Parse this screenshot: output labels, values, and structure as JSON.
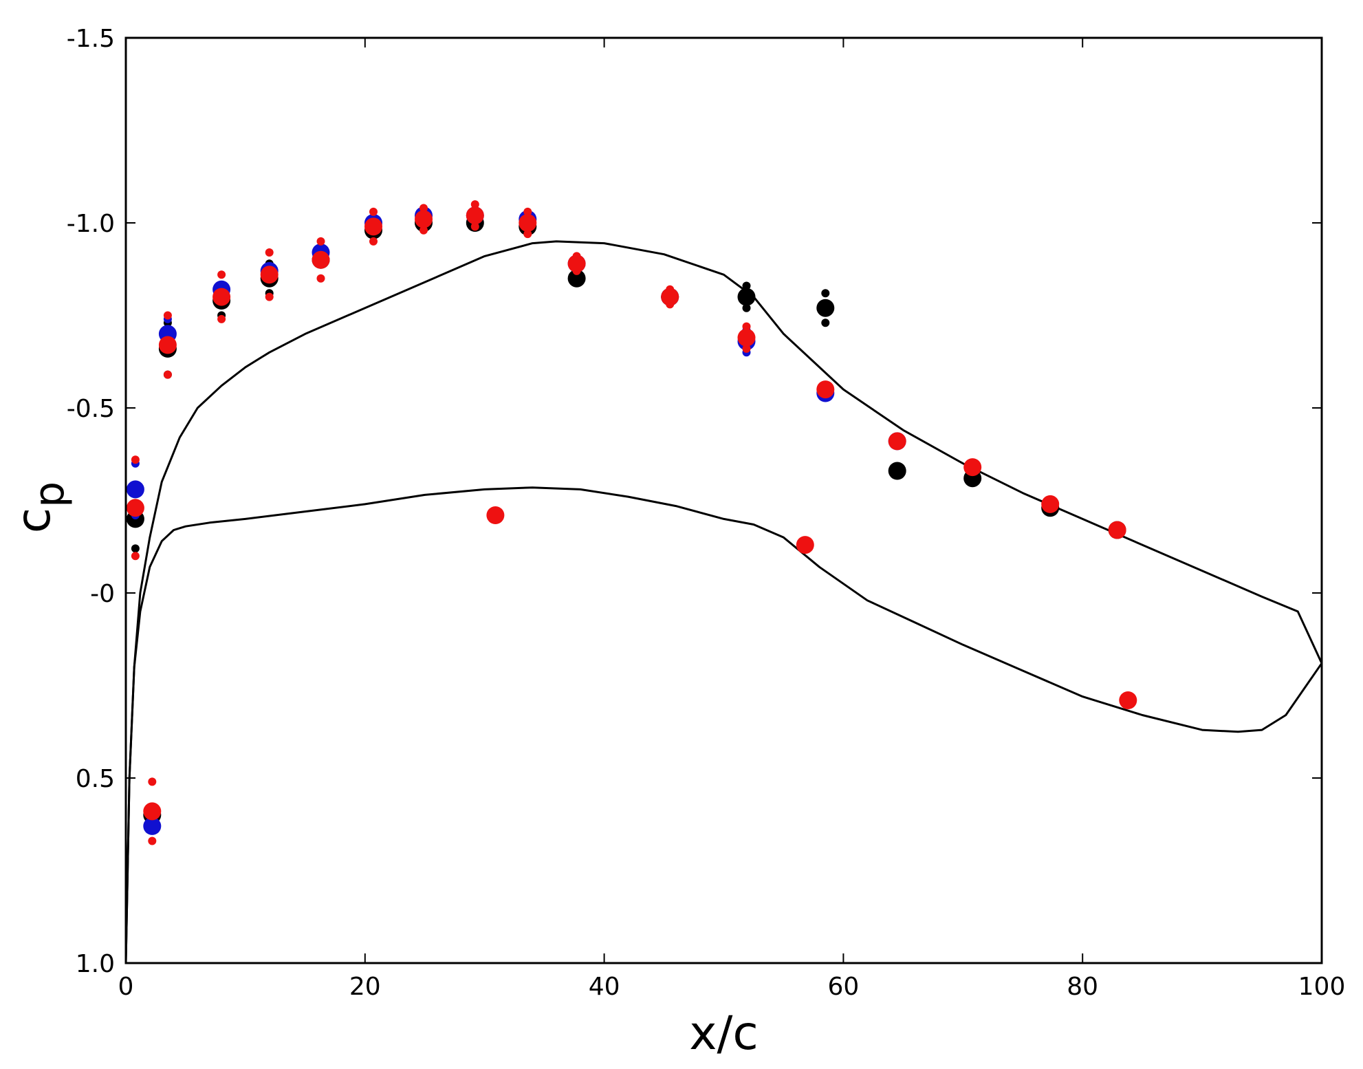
{
  "chart_data": {
    "type": "scatter",
    "title": "",
    "xlabel": "x/c",
    "ylabel": "c",
    "ylabel_subscript": "p",
    "xlim": [
      0,
      100
    ],
    "ylim": [
      1.0,
      -1.5
    ],
    "y_inverted": true,
    "grid": false,
    "x_ticks": [
      0,
      20,
      40,
      60,
      80,
      100
    ],
    "x_tick_labels": [
      "0",
      "20",
      "40",
      "60",
      "80",
      "100"
    ],
    "y_ticks": [
      -1.5,
      -1.0,
      -0.5,
      0.0,
      0.5,
      1.0
    ],
    "y_tick_labels": [
      "-1.5",
      "-1.0",
      "-0.5",
      "-0",
      "0.5",
      "1.0"
    ],
    "colors": {
      "line": "#000000",
      "black": "#000000",
      "blue": "#1010d0",
      "red": "#ee1111"
    },
    "lines": [
      {
        "name": "upper-surface-curve",
        "x": [
          0,
          0.3,
          0.7,
          1.2,
          2,
          3,
          4.5,
          6,
          8,
          10,
          12,
          15,
          20,
          25,
          30,
          34,
          36,
          40,
          45,
          50,
          52.5,
          55,
          60,
          65,
          70,
          75,
          80,
          85,
          90,
          95,
          98,
          100
        ],
        "y": [
          1.0,
          0.5,
          0.2,
          0.0,
          -0.15,
          -0.3,
          -0.42,
          -0.5,
          -0.56,
          -0.61,
          -0.65,
          -0.7,
          -0.77,
          -0.84,
          -0.91,
          -0.945,
          -0.95,
          -0.945,
          -0.915,
          -0.86,
          -0.8,
          -0.7,
          -0.55,
          -0.44,
          -0.35,
          -0.27,
          -0.2,
          -0.13,
          -0.06,
          0.01,
          0.05,
          0.19
        ]
      },
      {
        "name": "lower-surface-curve",
        "x": [
          0,
          0.3,
          0.7,
          1.2,
          2,
          3,
          4,
          5,
          7,
          10,
          15,
          20,
          25,
          30,
          34,
          38,
          42,
          46,
          50,
          52.5,
          55,
          58,
          62,
          66,
          70,
          75,
          80,
          85,
          90,
          93,
          95,
          97,
          100
        ],
        "y": [
          1.0,
          0.5,
          0.2,
          0.05,
          -0.07,
          -0.14,
          -0.17,
          -0.18,
          -0.19,
          -0.2,
          -0.22,
          -0.24,
          -0.265,
          -0.28,
          -0.285,
          -0.28,
          -0.26,
          -0.235,
          -0.2,
          -0.185,
          -0.15,
          -0.07,
          0.02,
          0.08,
          0.14,
          0.21,
          0.28,
          0.33,
          0.37,
          0.375,
          0.37,
          0.33,
          0.19
        ]
      }
    ],
    "series": [
      {
        "name": "black",
        "color": "black",
        "points": [
          {
            "x": 0.8,
            "y": -0.2,
            "spread": 0.08
          },
          {
            "x": 2.2,
            "y": 0.6
          },
          {
            "x": 3.5,
            "y": -0.66,
            "spread": 0.07
          },
          {
            "x": 8,
            "y": -0.79,
            "spread": 0.04
          },
          {
            "x": 12,
            "y": -0.85,
            "spread": 0.04
          },
          {
            "x": 16.3,
            "y": -0.9
          },
          {
            "x": 20.7,
            "y": -0.98
          },
          {
            "x": 24.9,
            "y": -1.0
          },
          {
            "x": 29.2,
            "y": -1.0
          },
          {
            "x": 33.6,
            "y": -0.99
          },
          {
            "x": 37.7,
            "y": -0.85
          },
          {
            "x": 45.5,
            "y": -0.8
          },
          {
            "x": 51.9,
            "y": -0.8,
            "spread": 0.03
          },
          {
            "x": 58.5,
            "y": -0.77,
            "spread": 0.04
          },
          {
            "x": 64.5,
            "y": -0.33
          },
          {
            "x": 70.8,
            "y": -0.31
          },
          {
            "x": 77.3,
            "y": -0.23
          },
          {
            "x": 82.9,
            "y": -0.17
          }
        ]
      },
      {
        "name": "blue",
        "color": "blue",
        "points": [
          {
            "x": 0.8,
            "y": -0.28,
            "spread": 0.07
          },
          {
            "x": 2.2,
            "y": 0.63
          },
          {
            "x": 3.5,
            "y": -0.7,
            "spread": 0.04
          },
          {
            "x": 8,
            "y": -0.82
          },
          {
            "x": 12,
            "y": -0.87
          },
          {
            "x": 16.3,
            "y": -0.92
          },
          {
            "x": 20.7,
            "y": -1.0
          },
          {
            "x": 24.9,
            "y": -1.02
          },
          {
            "x": 29.2,
            "y": -1.02
          },
          {
            "x": 33.6,
            "y": -1.01
          },
          {
            "x": 37.7,
            "y": -0.89
          },
          {
            "x": 45.5,
            "y": -0.8
          },
          {
            "x": 51.9,
            "y": -0.68,
            "spread": 0.03
          },
          {
            "x": 58.5,
            "y": -0.54
          },
          {
            "x": 64.5,
            "y": -0.41
          }
        ]
      },
      {
        "name": "red",
        "color": "red",
        "points": [
          {
            "x": 0.8,
            "y": -0.23,
            "spread": 0.13
          },
          {
            "x": 2.2,
            "y": 0.59,
            "spread": 0.08
          },
          {
            "x": 3.5,
            "y": -0.67,
            "spread": 0.08
          },
          {
            "x": 8,
            "y": -0.8,
            "spread": 0.06
          },
          {
            "x": 12,
            "y": -0.86,
            "spread": 0.06
          },
          {
            "x": 16.3,
            "y": -0.9,
            "spread": 0.05
          },
          {
            "x": 20.7,
            "y": -0.99,
            "spread": 0.04
          },
          {
            "x": 24.9,
            "y": -1.01,
            "spread": 0.03
          },
          {
            "x": 29.2,
            "y": -1.02,
            "spread": 0.03
          },
          {
            "x": 30.9,
            "y": -0.21
          },
          {
            "x": 33.6,
            "y": -1.0,
            "spread": 0.03
          },
          {
            "x": 37.7,
            "y": -0.89,
            "spread": 0.02
          },
          {
            "x": 45.5,
            "y": -0.8,
            "spread": 0.02
          },
          {
            "x": 51.9,
            "y": -0.69,
            "spread": 0.03
          },
          {
            "x": 56.8,
            "y": -0.13
          },
          {
            "x": 58.5,
            "y": -0.55
          },
          {
            "x": 64.5,
            "y": -0.41
          },
          {
            "x": 70.8,
            "y": -0.34
          },
          {
            "x": 77.3,
            "y": -0.24
          },
          {
            "x": 82.9,
            "y": -0.17
          },
          {
            "x": 83.8,
            "y": 0.29
          }
        ]
      }
    ]
  }
}
